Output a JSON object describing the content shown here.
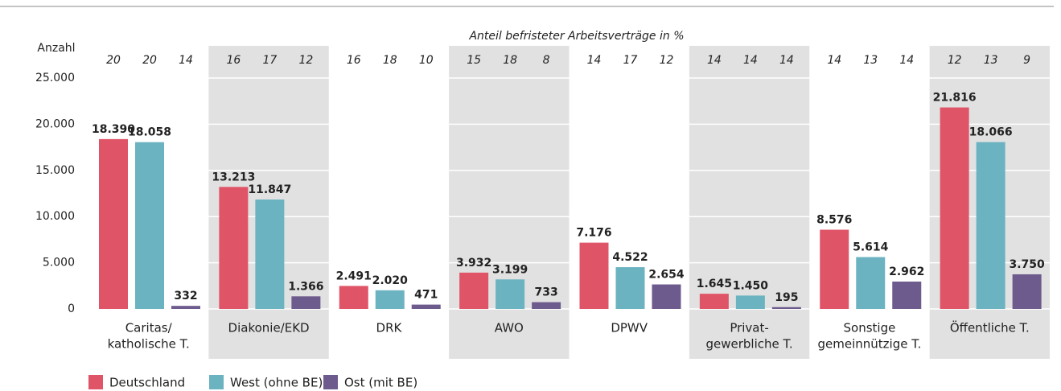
{
  "chart_data": {
    "type": "bar",
    "annotation": "Anteil befristeter Arbeitsverträge in %",
    "ylabel": "Anzahl",
    "categories": [
      [
        "Caritas/",
        "katholische T."
      ],
      [
        "Diakonie/EKD"
      ],
      [
        "DRK"
      ],
      [
        "AWO"
      ],
      [
        "DPWV"
      ],
      [
        "Privat-",
        "gewerbliche T."
      ],
      [
        "Sonstige",
        "gemeinnützige T."
      ],
      [
        "Öffentliche T."
      ]
    ],
    "series": [
      {
        "name": "Deutschland",
        "color": "#e05467",
        "values": [
          18390,
          13213,
          2491,
          3932,
          7176,
          1645,
          8576,
          21816
        ],
        "value_labels": [
          "18.390",
          "13.213",
          "2.491",
          "3.932",
          "7.176",
          "1.645",
          "8.576",
          "21.816"
        ],
        "shares": [
          20,
          16,
          16,
          15,
          14,
          14,
          14,
          12
        ]
      },
      {
        "name": "West (ohne BE)",
        "color": "#6cb3c1",
        "values": [
          18058,
          11847,
          2020,
          3199,
          4522,
          1450,
          5614,
          18066
        ],
        "value_labels": [
          "18.058",
          "11.847",
          "2.020",
          "3.199",
          "4.522",
          "1.450",
          "5.614",
          "18.066"
        ],
        "shares": [
          20,
          17,
          18,
          18,
          17,
          14,
          13,
          13
        ]
      },
      {
        "name": "Ost (mit BE)",
        "color": "#6e5b8d",
        "values": [
          332,
          1366,
          471,
          733,
          2654,
          195,
          2962,
          3750
        ],
        "value_labels": [
          "332",
          "1.366",
          "471",
          "733",
          "2.654",
          "195",
          "2.962",
          "3.750"
        ],
        "shares": [
          14,
          12,
          10,
          8,
          12,
          14,
          14,
          9
        ]
      }
    ],
    "ylim": [
      0,
      25000
    ],
    "yticks": [
      0,
      {
        "value": 5000,
        "label": "5.000"
      },
      {
        "value": 10000,
        "label": "10.000"
      },
      {
        "value": 15000,
        "label": "15.000"
      },
      {
        "value": 20000,
        "label": "20.000"
      },
      {
        "value": 25000,
        "label": "25.000"
      }
    ],
    "grid": true
  }
}
